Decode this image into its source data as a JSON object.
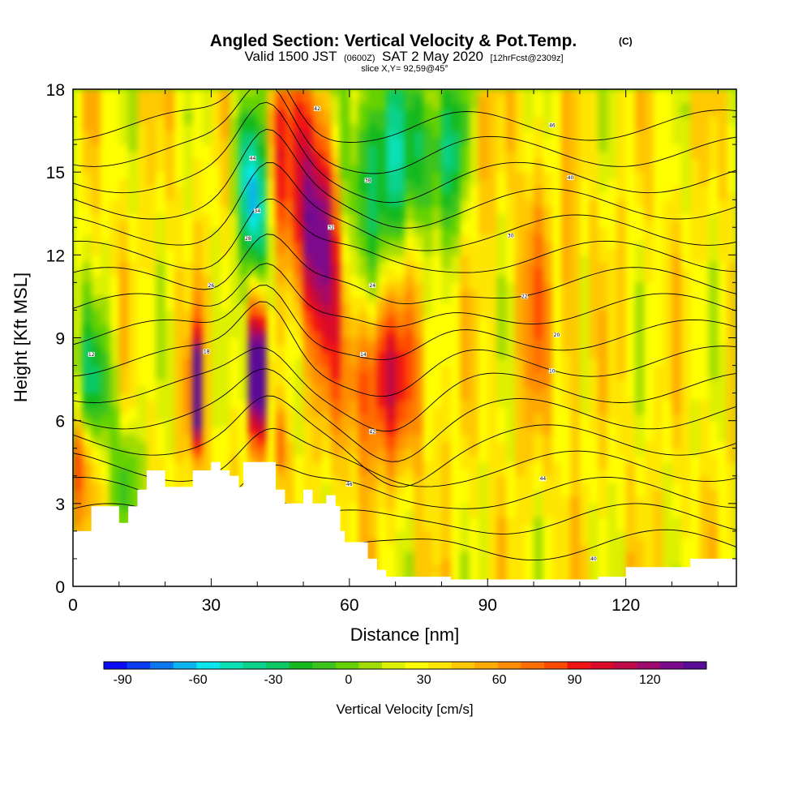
{
  "title": {
    "main": "Angled Section: Vertical Velocity & Pot.Temp.",
    "copyright": "(C)",
    "valid_prefix": "Valid 1500 JST",
    "valid_zulu": "(0600Z)",
    "valid_date": "SAT 2 May 2020",
    "forecast": "[12hrFcst@2309z]",
    "slice": "slice X,Y= 92,59@45°"
  },
  "chart_data": {
    "type": "heatmap",
    "xlabel": "Distance [nm]",
    "ylabel": "Height [Kft MSL]",
    "xlim": [
      0,
      144
    ],
    "ylim": [
      0,
      18
    ],
    "x_ticks": [
      0,
      30,
      60,
      90,
      120
    ],
    "y_ticks": [
      0,
      3,
      6,
      9,
      12,
      15,
      18
    ],
    "colorbar": {
      "title": "Vertical Velocity [cm/s]",
      "ticks": [
        -90,
        -60,
        -30,
        0,
        30,
        60,
        90,
        120
      ],
      "min": -97.5,
      "max": 142.5,
      "step": 7.5,
      "colors": [
        "#0b0bf5",
        "#0a3cf5",
        "#0a78f0",
        "#0ab4f0",
        "#0ae6f0",
        "#0ae0b4",
        "#0ad28c",
        "#0ac864",
        "#14b91e",
        "#3cc31e",
        "#64d200",
        "#a0dc00",
        "#dcf000",
        "#ffff00",
        "#ffe600",
        "#ffc800",
        "#ffaa00",
        "#ff8c00",
        "#ff6e00",
        "#ff4b00",
        "#f01414",
        "#dc0a28",
        "#be0a46",
        "#a00a6e",
        "#7d0a8c",
        "#5a0a96"
      ]
    },
    "terrain_kft": [
      [
        0,
        2.0
      ],
      [
        4,
        2.9
      ],
      [
        8,
        2.9
      ],
      [
        10,
        2.3
      ],
      [
        12,
        2.9
      ],
      [
        14,
        3.5
      ],
      [
        16,
        4.2
      ],
      [
        18,
        4.2
      ],
      [
        20,
        3.6
      ],
      [
        24,
        3.6
      ],
      [
        26,
        4.2
      ],
      [
        30,
        4.5
      ],
      [
        32,
        4.2
      ],
      [
        34,
        4.0
      ],
      [
        36,
        3.6
      ],
      [
        37,
        4.5
      ],
      [
        41,
        4.5
      ],
      [
        44,
        3.5
      ],
      [
        46,
        3.0
      ],
      [
        48,
        3.0
      ],
      [
        50,
        3.5
      ],
      [
        52,
        3.0
      ],
      [
        55,
        3.3
      ],
      [
        57,
        2.9
      ],
      [
        58,
        2.0
      ],
      [
        59,
        1.6
      ],
      [
        62,
        1.6
      ],
      [
        64,
        1.0
      ],
      [
        66,
        0.6
      ],
      [
        68,
        0.35
      ],
      [
        80,
        0.35
      ],
      [
        82,
        0.25
      ],
      [
        100,
        0.25
      ],
      [
        114,
        0.35
      ],
      [
        120,
        0.7
      ],
      [
        128,
        0.7
      ],
      [
        134,
        1.0
      ],
      [
        144,
        1.3
      ]
    ],
    "velocity_samples_cm_s": [
      {
        "x": 26,
        "z": 7.0,
        "w": 110
      },
      {
        "x": 40,
        "z": 7.5,
        "w": 125
      },
      {
        "x": 39,
        "z": 14.0,
        "w": -60
      },
      {
        "x": 52,
        "z": 13.5,
        "w": 60
      },
      {
        "x": 66,
        "z": 7.5,
        "w": 45
      },
      {
        "x": 68,
        "z": 15.0,
        "w": -30
      },
      {
        "x": 5,
        "z": 6.5,
        "w": -25
      },
      {
        "x": 100,
        "z": 10.0,
        "w": 15
      },
      {
        "x": 3,
        "z": 4.0,
        "w": 35
      }
    ],
    "isentrope_labels_c": [
      "42",
      "46",
      "44",
      "40",
      "38",
      "34",
      "32",
      "30",
      "28",
      "26",
      "24",
      "22",
      "20",
      "18",
      "14",
      "12",
      "10"
    ]
  }
}
